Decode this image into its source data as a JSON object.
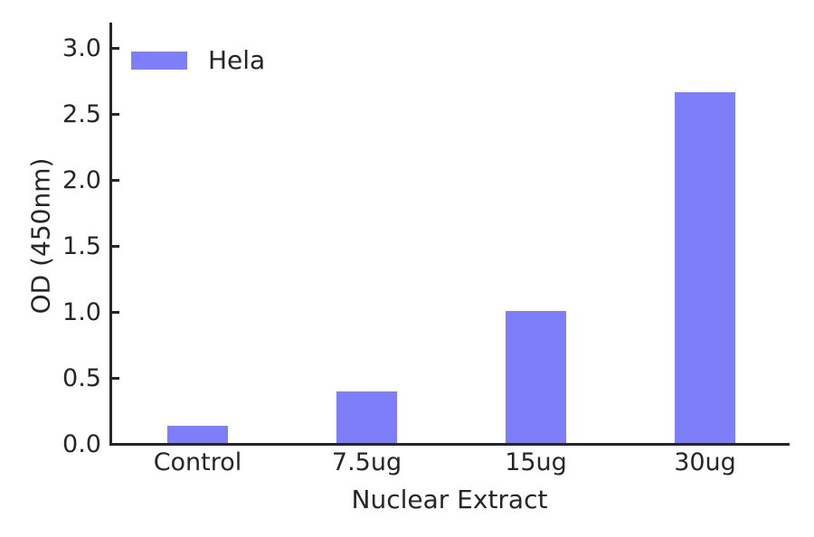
{
  "chart_data": {
    "type": "bar",
    "title": "",
    "categories": [
      "Control",
      "7.5ug",
      "15ug",
      "30ug"
    ],
    "series": [
      {
        "name": "Hela",
        "values": [
          0.13,
          0.39,
          1.0,
          2.66
        ]
      }
    ],
    "xlabel": "Nuclear Extract",
    "ylabel": "OD (450nm)",
    "ylim": [
      0.0,
      3.0
    ],
    "ytick_labels": [
      "0.0",
      "0.5",
      "1.0",
      "1.5",
      "2.0",
      "2.5",
      "3.0"
    ],
    "grid": false,
    "legend": {
      "position": "upper-left",
      "entries": [
        "Hela"
      ]
    },
    "colors": {
      "bar_fill": "#7e7ef8",
      "axis": "#262626",
      "background": "#ffffff"
    }
  }
}
